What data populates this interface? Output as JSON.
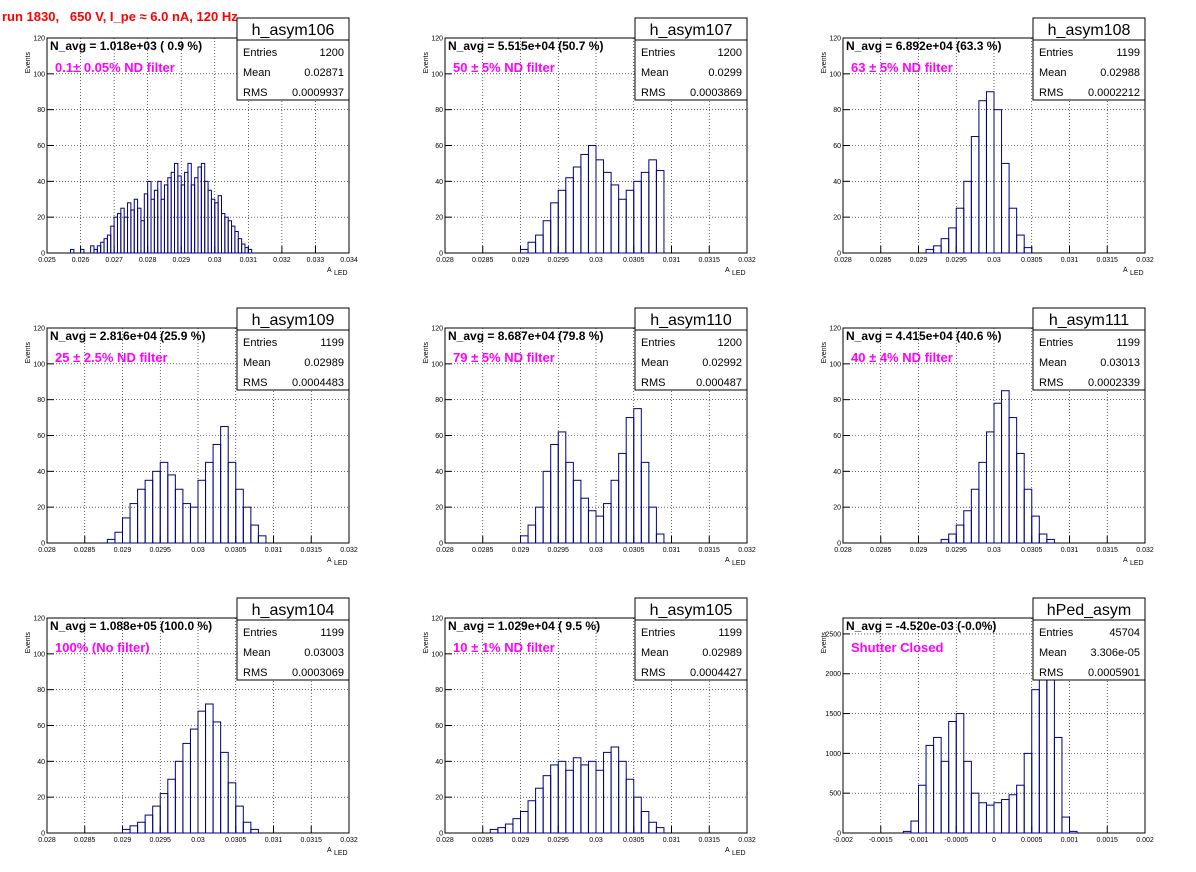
{
  "header": {
    "title": "run 1830,   650 V, I_pe ≈ 6.0 nA, 120 Hz"
  },
  "axis_text": {
    "ylabel": "Events",
    "xlabel_main": "A",
    "xlabel_sub": "LED"
  },
  "stats_labels": {
    "entries": "Entries",
    "mean": "Mean",
    "rms": "RMS"
  },
  "colors": {
    "histogram": "#000080",
    "filter_text": "#ff00ff",
    "title": "#ff0000",
    "grid": "#000000"
  },
  "chart_data": [
    {
      "type": "bar",
      "name": "h_asym106",
      "n_avg": "N_avg = 1.018e+03 ( 0.9 %)",
      "filter": "0.1± 0.05% ND filter",
      "stats": {
        "entries": "1200",
        "mean": "0.02871",
        "rms": "0.0009937"
      },
      "xlim": [
        0.025,
        0.034
      ],
      "ylim": [
        0,
        120
      ],
      "xticks": [
        "0.025",
        "0.026",
        "0.027",
        "0.028",
        "0.029",
        "0.03",
        "0.031",
        "0.032",
        "0.033",
        "0.034"
      ],
      "yticks": [
        "0",
        "20",
        "40",
        "60",
        "80",
        "100",
        "120"
      ],
      "xlabel": "A_LED",
      "x": [
        0.02575,
        0.02585,
        0.02595,
        0.02605,
        0.02615,
        0.02625,
        0.02635,
        0.02645,
        0.02655,
        0.02665,
        0.02675,
        0.02685,
        0.02695,
        0.02705,
        0.02715,
        0.02725,
        0.02735,
        0.02745,
        0.02755,
        0.02765,
        0.02775,
        0.02785,
        0.02795,
        0.02805,
        0.02815,
        0.02825,
        0.02835,
        0.02845,
        0.02855,
        0.02865,
        0.02875,
        0.02885,
        0.02895,
        0.02905,
        0.02915,
        0.02925,
        0.02935,
        0.02945,
        0.02955,
        0.02965,
        0.02975,
        0.02985,
        0.02995,
        0.03005,
        0.03015,
        0.03025,
        0.03035,
        0.03045,
        0.03055,
        0.03065,
        0.03075,
        0.03085,
        0.03095,
        0.03105
      ],
      "values": [
        2,
        0,
        0,
        2,
        0,
        0,
        4,
        2,
        4,
        6,
        8,
        10,
        15,
        20,
        22,
        25,
        20,
        28,
        24,
        30,
        25,
        18,
        33,
        40,
        30,
        35,
        40,
        30,
        38,
        42,
        45,
        50,
        43,
        38,
        45,
        50,
        38,
        42,
        48,
        50,
        40,
        35,
        30,
        28,
        32,
        22,
        20,
        18,
        15,
        12,
        8,
        5,
        3,
        2
      ]
    },
    {
      "type": "bar",
      "name": "h_asym107",
      "n_avg": "N_avg = 5.515e+04 (50.7 %)",
      "filter": "50 ± 5% ND filter",
      "stats": {
        "entries": "1200",
        "mean": "0.0299",
        "rms": "0.0003869"
      },
      "xlim": [
        0.028,
        0.032
      ],
      "ylim": [
        0,
        120
      ],
      "xticks": [
        "0.028",
        "0.0285",
        "0.029",
        "0.0295",
        "0.03",
        "0.0305",
        "0.031",
        "0.0315",
        "0.032"
      ],
      "yticks": [
        "0",
        "20",
        "40",
        "60",
        "80",
        "100",
        "120"
      ],
      "xlabel": "A_LED",
      "x": [
        0.02905,
        0.02915,
        0.02925,
        0.02935,
        0.02945,
        0.02955,
        0.02965,
        0.02975,
        0.02985,
        0.02995,
        0.03005,
        0.03015,
        0.03025,
        0.03035,
        0.03045,
        0.03055,
        0.03065,
        0.03075,
        0.03085
      ],
      "values": [
        2,
        6,
        10,
        18,
        28,
        35,
        42,
        48,
        55,
        60,
        52,
        45,
        38,
        30,
        35,
        40,
        45,
        52,
        46
      ]
    },
    {
      "type": "bar",
      "name": "h_asym108",
      "n_avg": "N_avg = 6.892e+04 (63.3 %)",
      "filter": "63 ± 5% ND filter",
      "stats": {
        "entries": "1199",
        "mean": "0.02988",
        "rms": "0.0002212"
      },
      "xlim": [
        0.028,
        0.032
      ],
      "ylim": [
        0,
        120
      ],
      "xticks": [
        "0.028",
        "0.0285",
        "0.029",
        "0.0295",
        "0.03",
        "0.0305",
        "0.031",
        "0.0315",
        "0.032"
      ],
      "yticks": [
        "0",
        "20",
        "40",
        "60",
        "80",
        "100",
        "120"
      ],
      "xlabel": "A_LED",
      "x": [
        0.02915,
        0.02925,
        0.02935,
        0.02945,
        0.02955,
        0.02965,
        0.02975,
        0.02985,
        0.02995,
        0.03005,
        0.03015,
        0.03025,
        0.03035,
        0.03045
      ],
      "values": [
        2,
        4,
        8,
        14,
        25,
        40,
        65,
        85,
        90,
        80,
        50,
        25,
        10,
        3
      ]
    },
    {
      "type": "bar",
      "name": "h_asym109",
      "n_avg": "N_avg = 2.816e+04 (25.9 %)",
      "filter": "25 ± 2.5% ND filter",
      "stats": {
        "entries": "1199",
        "mean": "0.02989",
        "rms": "0.0004483"
      },
      "xlim": [
        0.028,
        0.032
      ],
      "ylim": [
        0,
        120
      ],
      "xticks": [
        "0.028",
        "0.0285",
        "0.029",
        "0.0295",
        "0.03",
        "0.0305",
        "0.031",
        "0.0315",
        "0.032"
      ],
      "yticks": [
        "0",
        "20",
        "40",
        "60",
        "80",
        "100",
        "120"
      ],
      "xlabel": "A_LED",
      "x": [
        0.02885,
        0.02895,
        0.02905,
        0.02915,
        0.02925,
        0.02935,
        0.02945,
        0.02955,
        0.02965,
        0.02975,
        0.02985,
        0.02995,
        0.03005,
        0.03015,
        0.03025,
        0.03035,
        0.03045,
        0.03055,
        0.03065,
        0.03075,
        0.03085
      ],
      "values": [
        2,
        6,
        14,
        22,
        30,
        35,
        40,
        45,
        38,
        30,
        22,
        20,
        35,
        45,
        55,
        65,
        45,
        30,
        20,
        10,
        4
      ]
    },
    {
      "type": "bar",
      "name": "h_asym110",
      "n_avg": "N_avg = 8.687e+04 (79.8 %)",
      "filter": "79 ± 5% ND filter",
      "stats": {
        "entries": "1200",
        "mean": "0.02992",
        "rms": "0.000487"
      },
      "xlim": [
        0.028,
        0.032
      ],
      "ylim": [
        0,
        120
      ],
      "xticks": [
        "0.028",
        "0.0285",
        "0.029",
        "0.0295",
        "0.03",
        "0.0305",
        "0.031",
        "0.0315",
        "0.032"
      ],
      "yticks": [
        "0",
        "20",
        "40",
        "60",
        "80",
        "100",
        "120"
      ],
      "xlabel": "A_LED",
      "x": [
        0.02905,
        0.02915,
        0.02925,
        0.02935,
        0.02945,
        0.02955,
        0.02965,
        0.02975,
        0.02985,
        0.02995,
        0.03005,
        0.03015,
        0.03025,
        0.03035,
        0.03045,
        0.03055,
        0.03065,
        0.03075,
        0.03085
      ],
      "values": [
        4,
        10,
        20,
        40,
        55,
        62,
        45,
        35,
        25,
        18,
        15,
        22,
        35,
        50,
        70,
        75,
        45,
        20,
        5
      ]
    },
    {
      "type": "bar",
      "name": "h_asym111",
      "n_avg": "N_avg = 4.415e+04 (40.6 %)",
      "filter": "40 ± 4% ND filter",
      "stats": {
        "entries": "1199",
        "mean": "0.03013",
        "rms": "0.0002339"
      },
      "xlim": [
        0.028,
        0.032
      ],
      "ylim": [
        0,
        120
      ],
      "xticks": [
        "0.028",
        "0.0285",
        "0.029",
        "0.0295",
        "0.03",
        "0.0305",
        "0.031",
        "0.0315",
        "0.032"
      ],
      "yticks": [
        "0",
        "20",
        "40",
        "60",
        "80",
        "100",
        "120"
      ],
      "xlabel": "A_LED",
      "x": [
        0.02935,
        0.02945,
        0.02955,
        0.02965,
        0.02975,
        0.02985,
        0.02995,
        0.03005,
        0.03015,
        0.03025,
        0.03035,
        0.03045,
        0.03055,
        0.03065,
        0.03075
      ],
      "values": [
        2,
        5,
        10,
        18,
        30,
        45,
        62,
        78,
        85,
        70,
        50,
        30,
        15,
        5,
        2
      ]
    },
    {
      "type": "bar",
      "name": "h_asym104",
      "n_avg": "N_avg = 1.088e+05 (100.0 %)",
      "filter": "100% (No filter)",
      "stats": {
        "entries": "1199",
        "mean": "0.03003",
        "rms": "0.0003069"
      },
      "xlim": [
        0.028,
        0.032
      ],
      "ylim": [
        0,
        120
      ],
      "xticks": [
        "0.028",
        "0.0285",
        "0.029",
        "0.0295",
        "0.03",
        "0.0305",
        "0.031",
        "0.0315",
        "0.032"
      ],
      "yticks": [
        "0",
        "20",
        "40",
        "60",
        "80",
        "100",
        "120"
      ],
      "xlabel": "A_LED",
      "x": [
        0.02905,
        0.02915,
        0.02925,
        0.02935,
        0.02945,
        0.02955,
        0.02965,
        0.02975,
        0.02985,
        0.02995,
        0.03005,
        0.03015,
        0.03025,
        0.03035,
        0.03045,
        0.03055,
        0.03065,
        0.03075
      ],
      "values": [
        2,
        4,
        6,
        10,
        15,
        22,
        30,
        40,
        50,
        58,
        68,
        72,
        62,
        45,
        28,
        15,
        6,
        2
      ]
    },
    {
      "type": "bar",
      "name": "h_asym105",
      "n_avg": "N_avg = 1.029e+04 ( 9.5 %)",
      "filter": "10 ± 1% ND filter",
      "stats": {
        "entries": "1199",
        "mean": "0.02989",
        "rms": "0.0004427"
      },
      "xlim": [
        0.028,
        0.032
      ],
      "ylim": [
        0,
        120
      ],
      "xticks": [
        "0.028",
        "0.0285",
        "0.029",
        "0.0295",
        "0.03",
        "0.0305",
        "0.031",
        "0.0315",
        "0.032"
      ],
      "yticks": [
        "0",
        "20",
        "40",
        "60",
        "80",
        "100",
        "120"
      ],
      "xlabel": "A_LED",
      "x": [
        0.02865,
        0.02875,
        0.02885,
        0.02895,
        0.02905,
        0.02915,
        0.02925,
        0.02935,
        0.02945,
        0.02955,
        0.02965,
        0.02975,
        0.02985,
        0.02995,
        0.03005,
        0.03015,
        0.03025,
        0.03035,
        0.03045,
        0.03055,
        0.03065,
        0.03075,
        0.03085
      ],
      "values": [
        2,
        3,
        5,
        8,
        12,
        18,
        25,
        32,
        38,
        40,
        35,
        42,
        38,
        40,
        35,
        45,
        48,
        40,
        30,
        20,
        12,
        6,
        3
      ]
    },
    {
      "type": "bar",
      "name": "hPed_asym",
      "n_avg": "N_avg = -4.520e-03 (-0.0%)",
      "filter": "Shutter Closed",
      "stats": {
        "entries": "45704",
        "mean": "3.306e-05",
        "rms": "0.0005901"
      },
      "xlim": [
        -0.002,
        0.002
      ],
      "ylim": [
        0,
        2700
      ],
      "xticks": [
        "-0.002",
        "-0.0015",
        "-0.001",
        "-0.0005",
        "0",
        "0.0005",
        "0.001",
        "0.0015",
        "0.002"
      ],
      "yticks": [
        "0",
        "500",
        "1000",
        "1500",
        "2000",
        "2500"
      ],
      "xlabel": "",
      "x": [
        -0.00115,
        -0.00105,
        -0.00095,
        -0.00085,
        -0.00075,
        -0.00065,
        -0.00055,
        -0.00045,
        -0.00035,
        -0.00025,
        -0.00015,
        -5e-05,
        5e-05,
        0.00015,
        0.00025,
        0.00035,
        0.00045,
        0.00055,
        0.00065,
        0.00075,
        0.00085,
        0.00095,
        0.00105
      ],
      "values": [
        20,
        150,
        600,
        1100,
        1200,
        900,
        1400,
        1500,
        900,
        500,
        380,
        350,
        380,
        420,
        480,
        600,
        1000,
        1800,
        2500,
        2600,
        1200,
        200,
        20
      ]
    }
  ]
}
